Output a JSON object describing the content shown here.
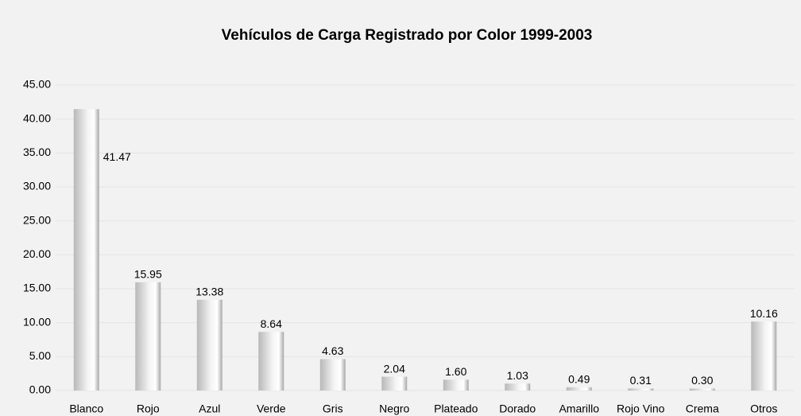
{
  "chart_data": {
    "type": "bar",
    "title": "Vehículos de Carga Registrado por Color 1999-2003",
    "categories": [
      "Blanco",
      "Rojo",
      "Azul",
      "Verde",
      "Gris",
      "Negro",
      "Plateado",
      "Dorado",
      "Amarillo",
      "Rojo Vino",
      "Crema",
      "Otros"
    ],
    "values": [
      41.47,
      15.95,
      13.38,
      8.64,
      4.63,
      2.04,
      1.6,
      1.03,
      0.49,
      0.31,
      0.3,
      10.16
    ],
    "value_labels": [
      "41.47",
      "15.95",
      "13.38",
      "8.64",
      "4.63",
      "2.04",
      "1.60",
      "1.03",
      "0.49",
      "0.31",
      "0.30",
      "10.16"
    ],
    "color": "#c8c8c8",
    "ylim": [
      0,
      45
    ],
    "yticks": [
      {
        "value": 0,
        "label": "0.00"
      },
      {
        "value": 5,
        "label": "5.00"
      },
      {
        "value": 10,
        "label": "10.00"
      },
      {
        "value": 15,
        "label": "15.00"
      },
      {
        "value": 20,
        "label": "20.00"
      },
      {
        "value": 25,
        "label": "25.00"
      },
      {
        "value": 30,
        "label": "30.00"
      },
      {
        "value": 35,
        "label": "35.00"
      },
      {
        "value": 40,
        "label": "40.00"
      },
      {
        "value": 45,
        "label": "45.00"
      }
    ],
    "grid": true
  }
}
